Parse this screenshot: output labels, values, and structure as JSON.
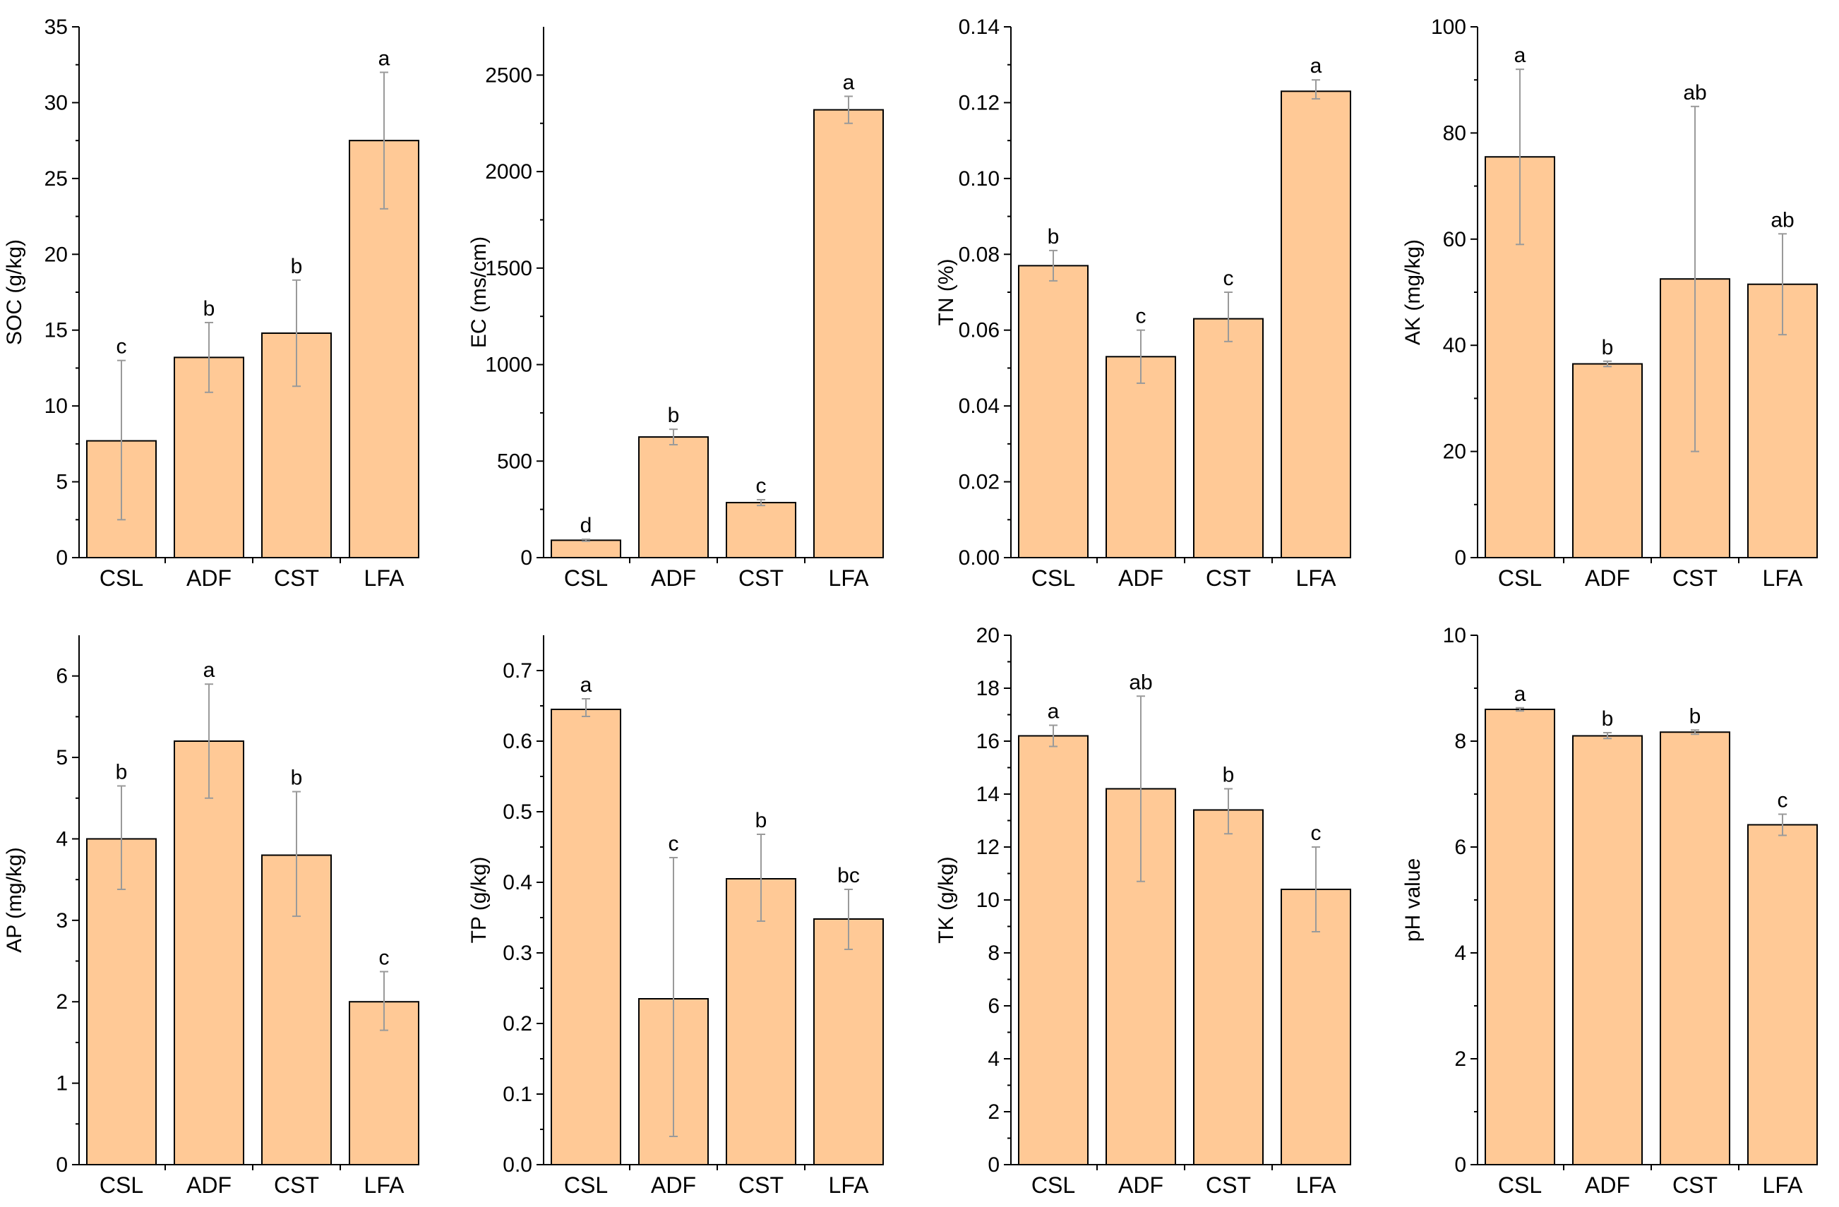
{
  "colors": {
    "bar_fill": "#FFC996",
    "bar_stroke": "#000000",
    "error_bar": "#9a9a9a",
    "axis": "#000000"
  },
  "chart_data": [
    {
      "type": "bar",
      "categories": [
        "CSL",
        "ADF",
        "CST",
        "LFA"
      ],
      "values": [
        7.7,
        13.2,
        14.8,
        27.5
      ],
      "error": [
        [
          2.5,
          13.0
        ],
        [
          10.9,
          15.5
        ],
        [
          11.3,
          18.3
        ],
        [
          23.0,
          32.0
        ]
      ],
      "letters": [
        "c",
        "b",
        "b",
        "a"
      ],
      "ylabel": "SOC (g/kg)",
      "ylim": [
        0,
        35
      ],
      "yticks": [
        0,
        5,
        10,
        15,
        20,
        25,
        30,
        35
      ],
      "yticklabels": [
        "0",
        "5",
        "10",
        "15",
        "20",
        "25",
        "30",
        "35"
      ]
    },
    {
      "type": "bar",
      "categories": [
        "CSL",
        "ADF",
        "CST",
        "LFA"
      ],
      "values": [
        90,
        625,
        285,
        2320
      ],
      "error": [
        [
          85,
          95
        ],
        [
          585,
          665
        ],
        [
          270,
          300
        ],
        [
          2250,
          2390
        ]
      ],
      "letters": [
        "d",
        "b",
        "c",
        "a"
      ],
      "ylabel": "EC (ms/cm)",
      "ylim": [
        0,
        2750
      ],
      "yticks": [
        0,
        500,
        1000,
        1500,
        2000,
        2500
      ],
      "yticklabels": [
        "0",
        "500",
        "1000",
        "1500",
        "2000",
        "2500"
      ]
    },
    {
      "type": "bar",
      "categories": [
        "CSL",
        "ADF",
        "CST",
        "LFA"
      ],
      "values": [
        0.077,
        0.053,
        0.063,
        0.123
      ],
      "error": [
        [
          0.073,
          0.081
        ],
        [
          0.046,
          0.06
        ],
        [
          0.057,
          0.07
        ],
        [
          0.121,
          0.126
        ]
      ],
      "letters": [
        "b",
        "c",
        "c",
        "a"
      ],
      "ylabel": "TN (%)",
      "ylim": [
        0,
        0.14
      ],
      "yticks": [
        0,
        0.02,
        0.04,
        0.06,
        0.08,
        0.1,
        0.12,
        0.14
      ],
      "yticklabels": [
        "0.00",
        "0.02",
        "0.04",
        "0.06",
        "0.08",
        "0.10",
        "0.12",
        "0.14"
      ]
    },
    {
      "type": "bar",
      "categories": [
        "CSL",
        "ADF",
        "CST",
        "LFA"
      ],
      "values": [
        75.5,
        36.5,
        52.5,
        51.5
      ],
      "error": [
        [
          59,
          92
        ],
        [
          36,
          37
        ],
        [
          20,
          85
        ],
        [
          42,
          61
        ]
      ],
      "letters": [
        "a",
        "b",
        "ab",
        "ab"
      ],
      "ylabel": "AK (mg/kg)",
      "ylim": [
        0,
        100
      ],
      "yticks": [
        0,
        20,
        40,
        60,
        80,
        100
      ],
      "yticklabels": [
        "0",
        "20",
        "40",
        "60",
        "80",
        "100"
      ]
    },
    {
      "type": "bar",
      "categories": [
        "CSL",
        "ADF",
        "CST",
        "LFA"
      ],
      "values": [
        4.0,
        5.2,
        3.8,
        2.0
      ],
      "error": [
        [
          3.38,
          4.65
        ],
        [
          4.5,
          5.9
        ],
        [
          3.05,
          4.58
        ],
        [
          1.65,
          2.37
        ]
      ],
      "letters": [
        "b",
        "a",
        "b",
        "c"
      ],
      "ylabel": "AP (mg/kg)",
      "ylim": [
        0,
        6.5
      ],
      "yticks": [
        0,
        1,
        2,
        3,
        4,
        5,
        6
      ],
      "yticklabels": [
        "0",
        "1",
        "2",
        "3",
        "4",
        "5",
        "6"
      ]
    },
    {
      "type": "bar",
      "categories": [
        "CSL",
        "ADF",
        "CST",
        "LFA"
      ],
      "values": [
        0.645,
        0.235,
        0.405,
        0.348
      ],
      "error": [
        [
          0.635,
          0.66
        ],
        [
          0.04,
          0.435
        ],
        [
          0.345,
          0.468
        ],
        [
          0.305,
          0.39
        ]
      ],
      "letters": [
        "a",
        "c",
        "b",
        "bc"
      ],
      "ylabel": "TP (g/kg)",
      "ylim": [
        0,
        0.75
      ],
      "yticks": [
        0,
        0.1,
        0.2,
        0.3,
        0.4,
        0.5,
        0.6,
        0.7
      ],
      "yticklabels": [
        "0.0",
        "0.1",
        "0.2",
        "0.3",
        "0.4",
        "0.5",
        "0.6",
        "0.7"
      ]
    },
    {
      "type": "bar",
      "categories": [
        "CSL",
        "ADF",
        "CST",
        "LFA"
      ],
      "values": [
        16.2,
        14.2,
        13.4,
        10.4
      ],
      "error": [
        [
          15.8,
          16.6
        ],
        [
          10.7,
          17.7
        ],
        [
          12.5,
          14.2
        ],
        [
          8.8,
          12.0
        ]
      ],
      "letters": [
        "a",
        "ab",
        "b",
        "c"
      ],
      "ylabel": "TK (g/kg)",
      "ylim": [
        0,
        20
      ],
      "yticks": [
        0,
        2,
        4,
        6,
        8,
        10,
        12,
        14,
        16,
        18,
        20
      ],
      "yticklabels": [
        "0",
        "2",
        "4",
        "6",
        "8",
        "10",
        "12",
        "14",
        "16",
        "18",
        "20"
      ]
    },
    {
      "type": "bar",
      "categories": [
        "CSL",
        "ADF",
        "CST",
        "LFA"
      ],
      "values": [
        8.6,
        8.1,
        8.17,
        6.42
      ],
      "error": [
        [
          8.57,
          8.63
        ],
        [
          8.05,
          8.16
        ],
        [
          8.13,
          8.21
        ],
        [
          6.22,
          6.62
        ]
      ],
      "letters": [
        "a",
        "b",
        "b",
        "c"
      ],
      "ylabel": "pH value",
      "ylim": [
        0,
        10
      ],
      "yticks": [
        0,
        2,
        4,
        6,
        8,
        10
      ],
      "yticklabels": [
        "0",
        "2",
        "4",
        "6",
        "8",
        "10"
      ]
    }
  ]
}
